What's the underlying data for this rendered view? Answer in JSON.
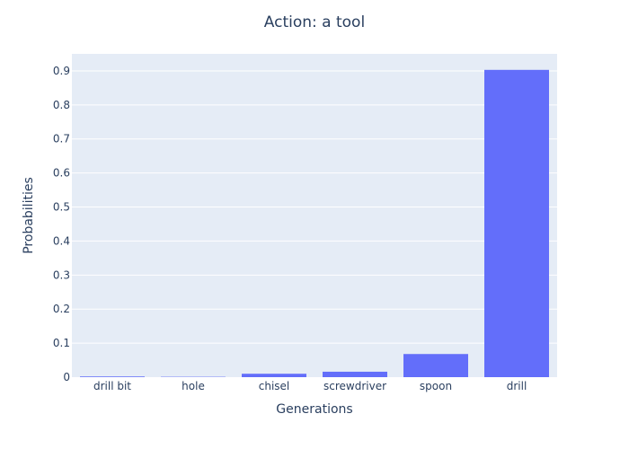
{
  "chart_data": {
    "type": "bar",
    "title": "Action: a tool",
    "xlabel": "Generations",
    "ylabel": "Probabilities",
    "categories": [
      "drill bit",
      "hole",
      "chisel",
      "screwdriver",
      "spoon",
      "drill"
    ],
    "values": [
      0.002,
      0.001,
      0.01,
      0.016,
      0.068,
      0.903
    ],
    "ylim": [
      0,
      0.95
    ],
    "yticks": [
      0,
      0.1,
      0.2,
      0.3,
      0.4,
      0.5,
      0.6,
      0.7,
      0.8,
      0.9
    ],
    "ytick_labels": [
      "0",
      "0.1",
      "0.2",
      "0.3",
      "0.4",
      "0.5",
      "0.6",
      "0.7",
      "0.8",
      "0.9"
    ],
    "grid": true,
    "colors": {
      "bar": "#636efa",
      "plot_bg": "#e5ecf6",
      "grid": "#ffffff",
      "text": "#2a3f5f"
    }
  }
}
